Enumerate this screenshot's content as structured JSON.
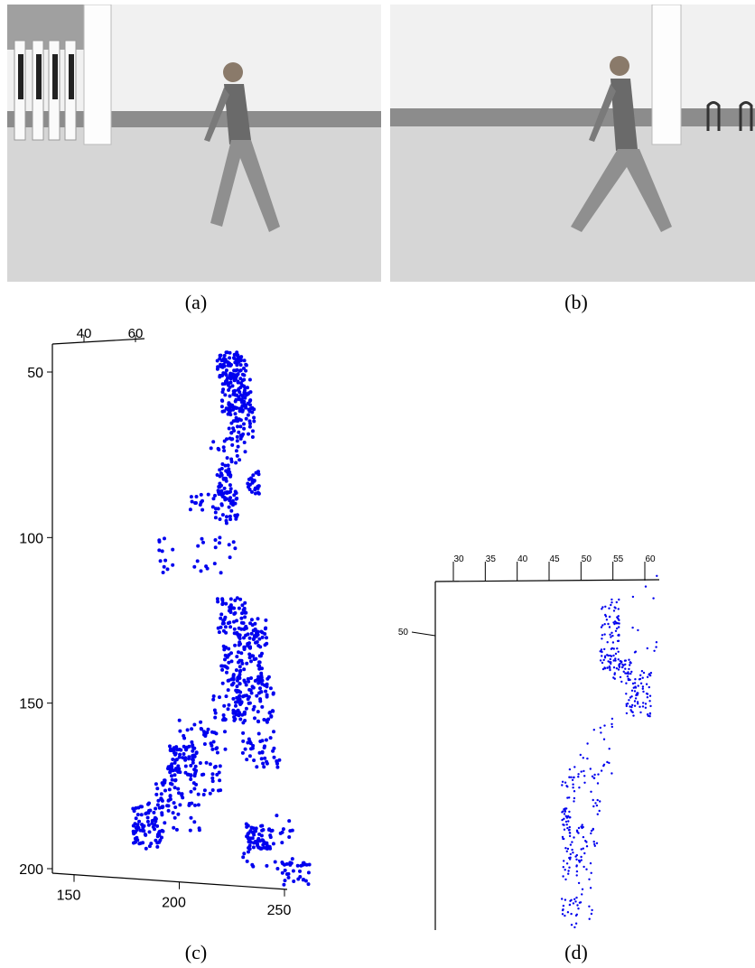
{
  "captions": {
    "a": "(a)",
    "b": "(b)",
    "c": "(c)",
    "d": "(d)"
  },
  "colors": {
    "points": "#0000ee",
    "axis": "#000000",
    "grass": "#d9d9d9",
    "wall": "#f2f2f2"
  },
  "plot_c": {
    "top_ticks": [
      "40",
      "60"
    ],
    "y_ticks": [
      "50",
      "100",
      "150",
      "200"
    ],
    "x_ticks": [
      "150",
      "200",
      "250"
    ]
  },
  "plot_d": {
    "top_ticks": [
      "30",
      "35",
      "40",
      "45",
      "50",
      "55",
      "60"
    ],
    "y_ticks": [
      "50"
    ]
  },
  "chart_data": [
    {
      "type": "scatter",
      "title": "",
      "xlabel": "",
      "ylabel": "",
      "xlim": [
        140,
        262
      ],
      "ylim": [
        42,
        205
      ],
      "series": [
        {
          "clusters": [
            {
              "x": [
                218,
                232
              ],
              "y": [
                44,
                52
              ],
              "n": 90
            },
            {
              "x": [
                220,
                234
              ],
              "y": [
                52,
                62
              ],
              "n": 90
            },
            {
              "x": [
                223,
                236
              ],
              "y": [
                60,
                70
              ],
              "n": 50
            },
            {
              "x": [
                215,
                232
              ],
              "y": [
                70,
                78
              ],
              "n": 25
            },
            {
              "x": [
                218,
                225
              ],
              "y": [
                78,
                88
              ],
              "n": 40
            },
            {
              "x": [
                232,
                238
              ],
              "y": [
                80,
                87
              ],
              "n": 25
            },
            {
              "x": [
                216,
                228
              ],
              "y": [
                86,
                96
              ],
              "n": 40
            },
            {
              "x": [
                205,
                215
              ],
              "y": [
                86,
                92
              ],
              "n": 12
            },
            {
              "x": [
                190,
                230
              ],
              "y": [
                100,
                112
              ],
              "n": 30
            },
            {
              "x": [
                218,
                232
              ],
              "y": [
                118,
                130
              ],
              "n": 60
            },
            {
              "x": [
                228,
                242
              ],
              "y": [
                124,
                134
              ],
              "n": 50
            },
            {
              "x": [
                220,
                240
              ],
              "y": [
                132,
                145
              ],
              "n": 80
            },
            {
              "x": [
                225,
                245
              ],
              "y": [
                142,
                156
              ],
              "n": 80
            },
            {
              "x": [
                215,
                232
              ],
              "y": [
                146,
                156
              ],
              "n": 40
            },
            {
              "x": [
                200,
                222
              ],
              "y": [
                155,
                166
              ],
              "n": 35
            },
            {
              "x": [
                194,
                208
              ],
              "y": [
                163,
                172
              ],
              "n": 70
            },
            {
              "x": [
                205,
                220
              ],
              "y": [
                168,
                178
              ],
              "n": 30
            },
            {
              "x": [
                188,
                202
              ],
              "y": [
                173,
                182
              ],
              "n": 40
            },
            {
              "x": [
                230,
                248
              ],
              "y": [
                158,
                170
              ],
              "n": 40
            },
            {
              "x": [
                178,
                192
              ],
              "y": [
                180,
                194
              ],
              "n": 80
            },
            {
              "x": [
                190,
                210
              ],
              "y": [
                180,
                190
              ],
              "n": 20
            },
            {
              "x": [
                232,
                245
              ],
              "y": [
                187,
                194
              ],
              "n": 60
            },
            {
              "x": [
                230,
                255
              ],
              "y": [
                183,
                200
              ],
              "n": 30
            },
            {
              "x": [
                248,
                262
              ],
              "y": [
                198,
                205
              ],
              "n": 30
            }
          ]
        }
      ]
    },
    {
      "type": "scatter",
      "title": "",
      "xlabel": "",
      "ylabel": "",
      "xlim": [
        30,
        60
      ],
      "ylim": [
        46,
        75
      ],
      "series": [
        {
          "clusters": [
            {
              "x": [
                53,
                56
              ],
              "y": [
                47,
                53
              ],
              "n": 90
            },
            {
              "x": [
                55,
                58
              ],
              "y": [
                52,
                54
              ],
              "n": 40
            },
            {
              "x": [
                57,
                61
              ],
              "y": [
                53,
                57
              ],
              "n": 70
            },
            {
              "x": [
                58,
                62
              ],
              "y": [
                45,
                52
              ],
              "n": 12
            },
            {
              "x": [
                51,
                55
              ],
              "y": [
                57,
                62
              ],
              "n": 20
            },
            {
              "x": [
                48,
                51
              ],
              "y": [
                60,
                63
              ],
              "n": 15
            },
            {
              "x": [
                47,
                49
              ],
              "y": [
                62,
                69
              ],
              "n": 60
            },
            {
              "x": [
                49,
                51
              ],
              "y": [
                66,
                70
              ],
              "n": 25
            },
            {
              "x": [
                51,
                53
              ],
              "y": [
                62,
                68
              ],
              "n": 20
            },
            {
              "x": [
                47,
                52
              ],
              "y": [
                69,
                74
              ],
              "n": 40
            },
            {
              "x": [
                48,
                50
              ],
              "y": [
                72,
                75
              ],
              "n": 12
            }
          ]
        }
      ]
    }
  ]
}
